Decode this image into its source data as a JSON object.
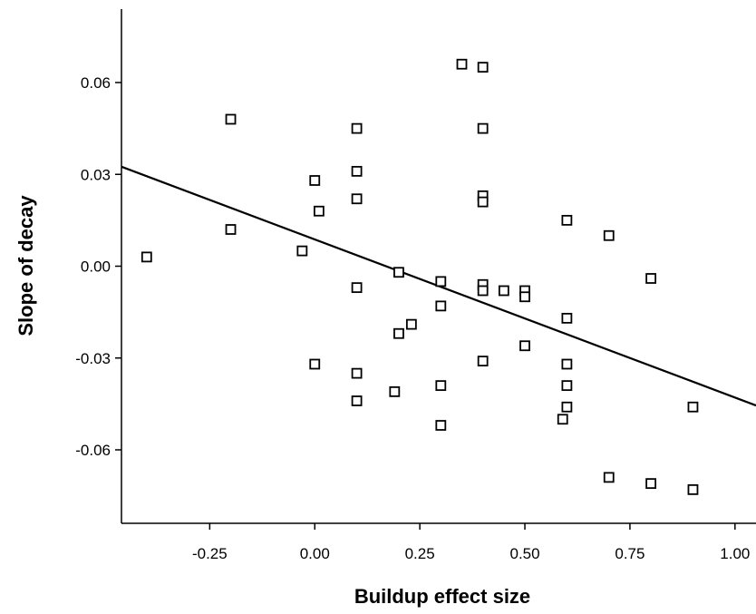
{
  "chart_data": {
    "type": "scatter",
    "title": "",
    "xlabel": "Buildup effect size",
    "ylabel": "Slope of decay",
    "xlim": [
      -0.46,
      1.05
    ],
    "ylim": [
      -0.084,
      0.084
    ],
    "x_ticks": [
      {
        "value": -0.25,
        "label": "-0.25"
      },
      {
        "value": 0.0,
        "label": "0.00"
      },
      {
        "value": 0.25,
        "label": "0.25"
      },
      {
        "value": 0.5,
        "label": "0.50"
      },
      {
        "value": 0.75,
        "label": "0.75"
      },
      {
        "value": 1.0,
        "label": "1.00"
      }
    ],
    "y_ticks": [
      {
        "value": 0.06,
        "label": "0.06"
      },
      {
        "value": 0.03,
        "label": "0.03"
      },
      {
        "value": 0.0,
        "label": "0.00"
      },
      {
        "value": -0.03,
        "label": "-0.03"
      },
      {
        "value": -0.06,
        "label": "-0.06"
      }
    ],
    "grid": false,
    "legend": "none",
    "marker": "open-square",
    "colors": {
      "marker": "#000000",
      "line": "#000000",
      "axis": "#000000"
    },
    "points": [
      {
        "x": -0.4,
        "y": 0.003
      },
      {
        "x": -0.2,
        "y": 0.048
      },
      {
        "x": -0.2,
        "y": 0.012
      },
      {
        "x": -0.03,
        "y": 0.005
      },
      {
        "x": 0.0,
        "y": 0.028
      },
      {
        "x": 0.01,
        "y": 0.018
      },
      {
        "x": 0.0,
        "y": -0.032
      },
      {
        "x": 0.1,
        "y": 0.045
      },
      {
        "x": 0.1,
        "y": 0.031
      },
      {
        "x": 0.1,
        "y": 0.022
      },
      {
        "x": 0.1,
        "y": -0.007
      },
      {
        "x": 0.1,
        "y": -0.035
      },
      {
        "x": 0.1,
        "y": -0.044
      },
      {
        "x": 0.19,
        "y": -0.041
      },
      {
        "x": 0.2,
        "y": -0.002
      },
      {
        "x": 0.2,
        "y": -0.022
      },
      {
        "x": 0.23,
        "y": -0.019
      },
      {
        "x": 0.3,
        "y": -0.005
      },
      {
        "x": 0.3,
        "y": -0.013
      },
      {
        "x": 0.3,
        "y": -0.039
      },
      {
        "x": 0.3,
        "y": -0.052
      },
      {
        "x": 0.35,
        "y": 0.066
      },
      {
        "x": 0.4,
        "y": 0.065
      },
      {
        "x": 0.4,
        "y": 0.045
      },
      {
        "x": 0.4,
        "y": 0.023
      },
      {
        "x": 0.4,
        "y": 0.021
      },
      {
        "x": 0.4,
        "y": -0.006
      },
      {
        "x": 0.4,
        "y": -0.008
      },
      {
        "x": 0.4,
        "y": -0.031
      },
      {
        "x": 0.45,
        "y": -0.008
      },
      {
        "x": 0.5,
        "y": -0.008
      },
      {
        "x": 0.5,
        "y": -0.01
      },
      {
        "x": 0.5,
        "y": -0.026
      },
      {
        "x": 0.59,
        "y": -0.05
      },
      {
        "x": 0.6,
        "y": 0.015
      },
      {
        "x": 0.6,
        "y": -0.017
      },
      {
        "x": 0.6,
        "y": -0.032
      },
      {
        "x": 0.6,
        "y": -0.039
      },
      {
        "x": 0.6,
        "y": -0.046
      },
      {
        "x": 0.7,
        "y": 0.01
      },
      {
        "x": 0.7,
        "y": -0.069
      },
      {
        "x": 0.8,
        "y": -0.004
      },
      {
        "x": 0.8,
        "y": -0.071
      },
      {
        "x": 0.9,
        "y": -0.046
      },
      {
        "x": 0.9,
        "y": -0.073
      }
    ],
    "fit_line": {
      "x": [
        -0.46,
        1.05
      ],
      "y": [
        0.0325,
        -0.0455
      ]
    }
  }
}
